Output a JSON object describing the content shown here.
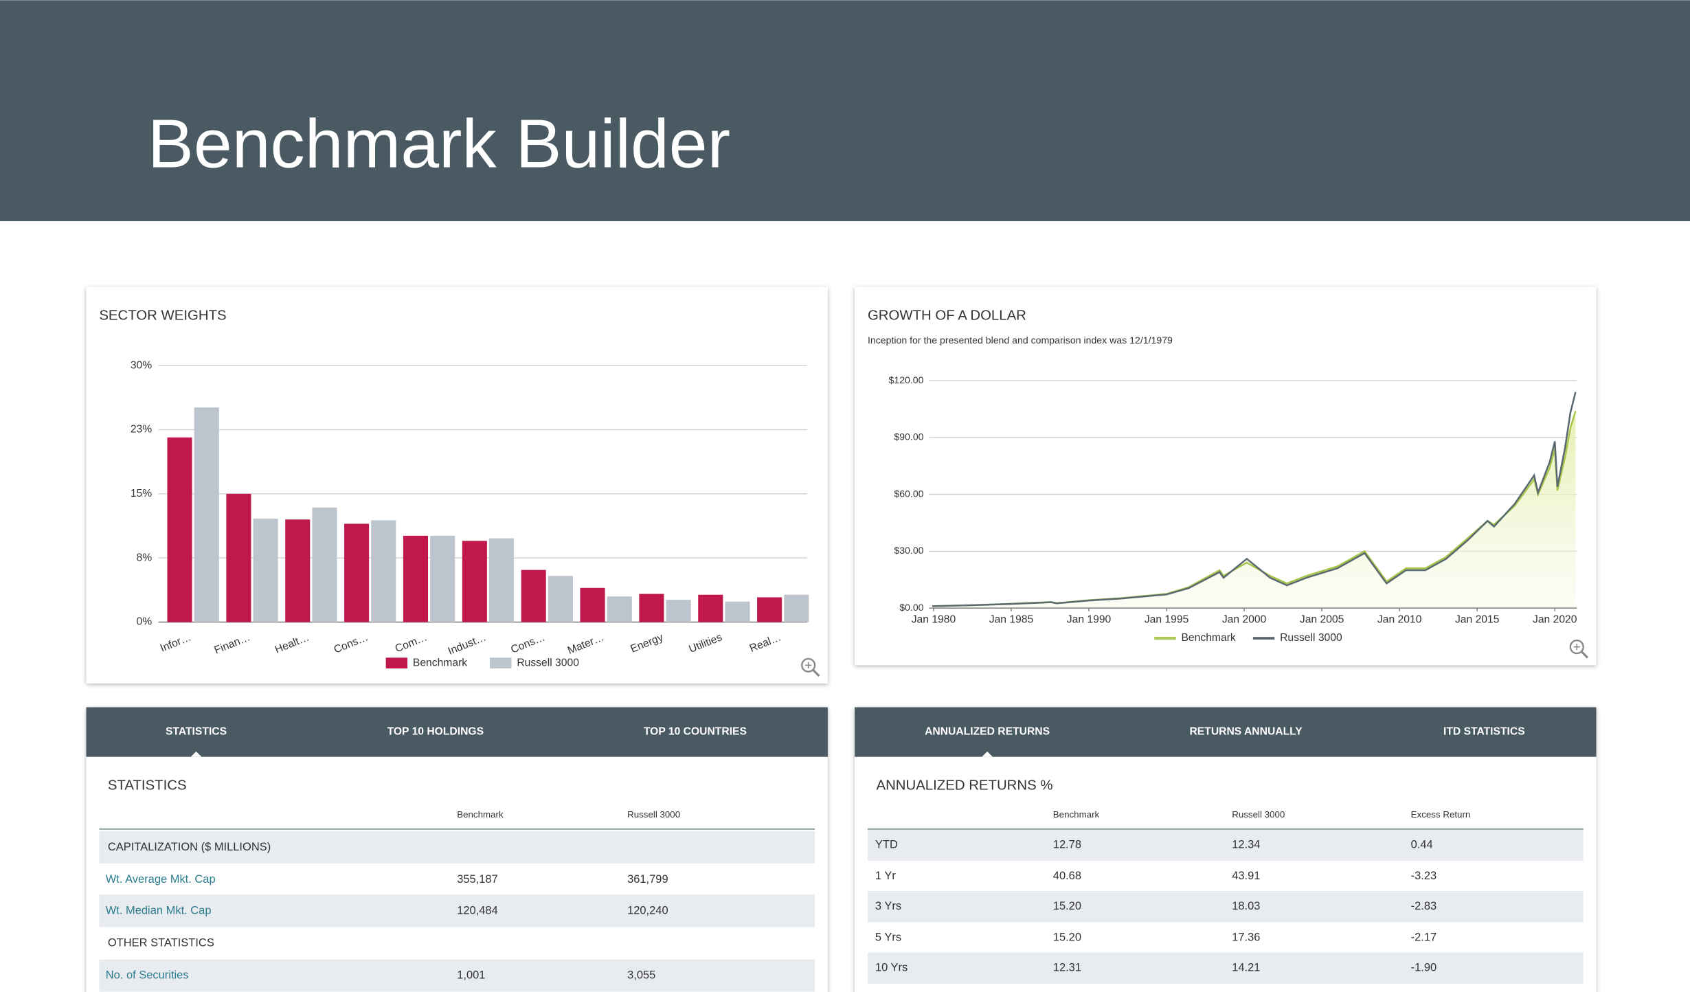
{
  "header": {
    "title": "Benchmark Builder"
  },
  "chart_data": [
    {
      "type": "bar",
      "title": "SECTOR WEIGHTS",
      "categories": [
        "Infor…",
        "Finan…",
        "Healt…",
        "Cons…",
        "Com…",
        "Indust…",
        "Cons…",
        "Mater…",
        "Energy",
        "Utilities",
        "Real…"
      ],
      "series": [
        {
          "name": "Benchmark",
          "color": "#c0184a",
          "values": [
            21.6,
            15.0,
            12.0,
            11.5,
            10.1,
            9.5,
            6.1,
            4.0,
            3.3,
            3.2,
            2.9
          ]
        },
        {
          "name": "Russell 3000",
          "color": "#bcc4cd",
          "values": [
            25.1,
            12.1,
            13.4,
            11.9,
            10.1,
            9.8,
            5.4,
            3.0,
            2.6,
            2.4,
            3.2
          ]
        }
      ],
      "ylim": [
        0,
        30
      ],
      "yticks": [
        {
          "value": 0,
          "label": "0%"
        },
        {
          "value": 7.5,
          "label": "8%"
        },
        {
          "value": 15,
          "label": "15%"
        },
        {
          "value": 22.5,
          "label": "23%"
        },
        {
          "value": 30,
          "label": "30%"
        }
      ],
      "grid": true
    },
    {
      "type": "line",
      "title": "GROWTH OF A DOLLAR",
      "subtitle": "Inception for the presented blend and comparison index was 12/1/1979",
      "x": [
        "1979-12",
        "1982-06",
        "1985-01",
        "1987-08",
        "1987-12",
        "1990-01",
        "1992-01",
        "1995-01",
        "1996-06",
        "1998-06",
        "1998-09",
        "2000-03",
        "2001-09",
        "2002-10",
        "2004-01",
        "2006-01",
        "2007-10",
        "2009-03",
        "2010-06",
        "2011-09",
        "2013-01",
        "2014-06",
        "2015-09",
        "2016-02",
        "2017-06",
        "2018-09",
        "2018-12",
        "2019-09",
        "2020-01",
        "2020-03",
        "2020-09",
        "2021-01",
        "2021-05"
      ],
      "series": [
        {
          "name": "Benchmark",
          "color": "#a8c64a",
          "values": [
            1,
            1.5,
            2.3,
            3.2,
            2.6,
            4.2,
            5.2,
            7.5,
            11,
            20,
            17,
            24,
            17,
            13,
            17,
            22,
            30,
            14,
            21,
            21,
            27,
            37,
            46,
            44,
            54,
            68,
            60,
            74,
            84,
            62,
            80,
            95,
            104
          ]
        },
        {
          "name": "Russell 3000",
          "color": "#5a6870",
          "values": [
            1,
            1.5,
            2.2,
            3.1,
            2.5,
            4,
            5,
            7.2,
            10.5,
            19,
            16,
            26,
            16,
            12,
            16,
            21,
            29,
            13,
            20,
            20,
            26,
            36,
            46,
            43,
            55,
            70,
            61,
            77,
            88,
            64,
            85,
            103,
            114
          ]
        }
      ],
      "xlim": [
        "1979-12",
        "2021-06"
      ],
      "xticks": [
        {
          "value": "1980-01",
          "label": "Jan 1980"
        },
        {
          "value": "1985-01",
          "label": "Jan 1985"
        },
        {
          "value": "1990-01",
          "label": "Jan 1990"
        },
        {
          "value": "1995-01",
          "label": "Jan 1995"
        },
        {
          "value": "2000-01",
          "label": "Jan 2000"
        },
        {
          "value": "2005-01",
          "label": "Jan 2005"
        },
        {
          "value": "2010-01",
          "label": "Jan 2010"
        },
        {
          "value": "2015-01",
          "label": "Jan 2015"
        },
        {
          "value": "2020-01",
          "label": "Jan 2020"
        }
      ],
      "ylim": [
        0,
        120
      ],
      "yticks": [
        {
          "value": 0,
          "label": "$0.00"
        },
        {
          "value": 30,
          "label": "$30.00"
        },
        {
          "value": 60,
          "label": "$60.00"
        },
        {
          "value": 90,
          "label": "$90.00"
        },
        {
          "value": 120,
          "label": "$120.00"
        }
      ],
      "grid": true
    }
  ],
  "statistics": {
    "tabs": [
      "STATISTICS",
      "TOP 10 HOLDINGS",
      "TOP 10 COUNTRIES"
    ],
    "title": "STATISTICS",
    "columns": [
      "Benchmark",
      "Russell 3000"
    ],
    "rows": [
      [
        "CAPITALIZATION ($ MILLIONS)"
      ],
      [
        "Wt. Average Mkt. Cap",
        "355,187",
        "361,799"
      ],
      [
        "Wt. Median Mkt. Cap",
        "120,484",
        "120,240"
      ],
      [
        "OTHER STATISTICS"
      ],
      [
        "No. of Securities",
        "1,001",
        "3,055"
      ]
    ]
  },
  "returns": {
    "tabs": [
      "ANNUALIZED RETURNS",
      "RETURNS ANNUALLY",
      "ITD STATISTICS"
    ],
    "title": "ANNUALIZED RETURNS %",
    "columns": [
      "Benchmark",
      "Russell 3000",
      "Excess Return"
    ],
    "rows": [
      [
        "YTD",
        "12.78",
        "12.34",
        "0.44"
      ],
      [
        "1 Yr",
        "40.68",
        "43.91",
        "-3.23"
      ],
      [
        "3 Yrs",
        "15.20",
        "18.03",
        "-2.83"
      ],
      [
        "5 Yrs",
        "15.20",
        "17.36",
        "-2.17"
      ],
      [
        "10 Yrs",
        "12.31",
        "14.21",
        "-1.90"
      ]
    ]
  }
}
